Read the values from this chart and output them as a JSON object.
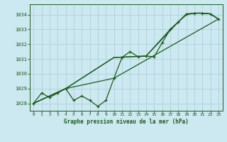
{
  "title": "Graphe pression niveau de la mer (hPa)",
  "background_color": "#cce8f0",
  "grid_color": "#aaccda",
  "line_color": "#1a5c1a",
  "xlim": [
    -0.5,
    23.5
  ],
  "ylim": [
    1027.5,
    1034.7
  ],
  "yticks": [
    1028,
    1029,
    1030,
    1031,
    1032,
    1033,
    1034
  ],
  "xticks": [
    0,
    1,
    2,
    3,
    4,
    5,
    6,
    7,
    8,
    9,
    10,
    11,
    12,
    13,
    14,
    15,
    16,
    17,
    18,
    19,
    20,
    21,
    22,
    23
  ],
  "series1_x": [
    0,
    1,
    2,
    3,
    4,
    5,
    6,
    7,
    8,
    9,
    10,
    11,
    12,
    13,
    14,
    15,
    16,
    17,
    18,
    19,
    20,
    21,
    22,
    23
  ],
  "series1_y": [
    1028.0,
    1028.7,
    1028.4,
    1028.7,
    1029.0,
    1028.2,
    1028.5,
    1028.2,
    1027.8,
    1028.2,
    1029.7,
    1031.1,
    1031.5,
    1031.15,
    1031.2,
    1031.15,
    1032.1,
    1033.0,
    1033.5,
    1034.05,
    1034.1,
    1034.1,
    1034.05,
    1033.7
  ],
  "series2_x": [
    0,
    4,
    10,
    23
  ],
  "series2_y": [
    1028.0,
    1029.0,
    1029.7,
    1033.7
  ],
  "series3_x": [
    0,
    4,
    10,
    14,
    17,
    19,
    20,
    21,
    22,
    23
  ],
  "series3_y": [
    1028.0,
    1029.0,
    1031.1,
    1031.2,
    1033.0,
    1034.0,
    1034.1,
    1034.1,
    1034.05,
    1033.7
  ],
  "series4_x": [
    0,
    4,
    10,
    14,
    18,
    19,
    20,
    21,
    22,
    23
  ],
  "series4_y": [
    1028.0,
    1029.0,
    1031.1,
    1031.2,
    1033.5,
    1034.0,
    1034.1,
    1034.1,
    1034.05,
    1033.7
  ]
}
